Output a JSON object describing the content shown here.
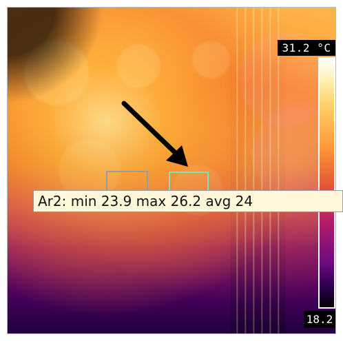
{
  "thermal_view": {
    "overlay_readout": "Ar2: min 23.9 max 26.2 avg 24",
    "scale": {
      "max_label": "31.2 °C",
      "min_label": "18.2"
    }
  },
  "colors": {
    "roi_ar1": "#9b9b9b",
    "roi_ar2": "#7fe3b6",
    "readout_bg": "#fff7d9"
  },
  "icons": {
    "annotation_arrow": "arrow-icon"
  }
}
